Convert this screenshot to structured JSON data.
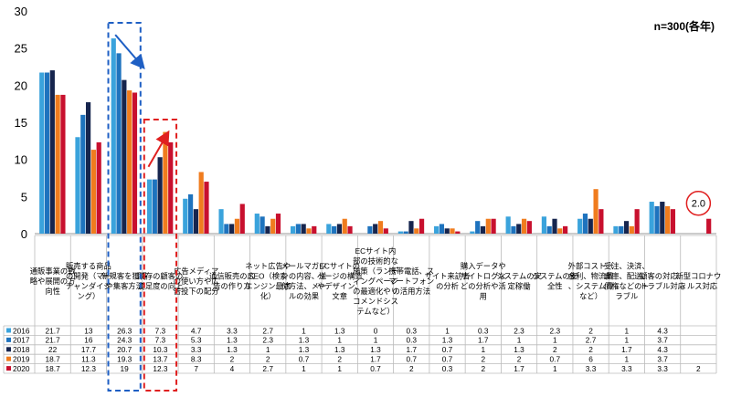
{
  "chart_data": {
    "type": "bar",
    "note": "n=300(各年)",
    "ylim": [
      0,
      30
    ],
    "yticks": [
      0,
      5,
      10,
      15,
      20,
      25,
      30
    ],
    "categories": [
      "通販事業の戦略や展開の方向性",
      "販売する商品の開発（マーチャンダイジング）",
      "新規客を獲得や集客方法",
      "既存の顧客の満足度の向上",
      "広告メディアの使い方や広告投下の配分",
      "通信販売の広告の作り方",
      "ネット広告やSEO（検索エンジン最適化）",
      "メールマガジンの内容、送付方法、メールの効果",
      "ECサイトのページの構造やデザイン、文章",
      "ECサイト内部の技術的な施策（ランディングページの最適化やリコメンドシステムなど）",
      "携帯電話、スマートフォンの活用方法",
      "サイト来訪者の分析",
      "購入データやサイトログなどの分析や活用",
      "システムの安定稼働",
      "システムの安全性",
      "外部コスト（金利、物流費、システム費など）",
      "受注、決済、倉庫、配送、債権などのトラブル",
      "顧客の対応、トラブル対応",
      "新型コロナウィルス対応"
    ],
    "series": [
      {
        "name": "2016",
        "color": "#3aa3dc",
        "values": [
          21.7,
          13,
          26.3,
          7.3,
          4.7,
          3.3,
          2.7,
          1,
          1.3,
          0,
          0.3,
          1,
          0.3,
          2.3,
          2.3,
          2,
          1,
          4.3,
          null
        ]
      },
      {
        "name": "2017",
        "color": "#1e73be",
        "values": [
          21.7,
          16,
          24.3,
          7.3,
          5.3,
          1.3,
          2.3,
          1.3,
          1,
          1,
          0.3,
          1.3,
          1.7,
          1,
          1,
          2.7,
          1,
          3.7,
          null
        ]
      },
      {
        "name": "2018",
        "color": "#16254e",
        "values": [
          22.0,
          17.7,
          20.7,
          10.3,
          3.3,
          1.3,
          1.0,
          1.3,
          1.3,
          1.3,
          1.7,
          0.7,
          1.0,
          1.3,
          2.0,
          2.0,
          1.7,
          4.3,
          null
        ]
      },
      {
        "name": "2019",
        "color": "#f07c1e",
        "values": [
          18.7,
          11.3,
          19.3,
          13.7,
          8.3,
          2.0,
          2.0,
          0.7,
          2.0,
          1.7,
          0.7,
          0.7,
          2.0,
          2.0,
          0.7,
          6.0,
          1.0,
          3.7,
          null
        ]
      },
      {
        "name": "2020",
        "color": "#c8102e",
        "values": [
          18.7,
          12.3,
          19.0,
          12.3,
          7.0,
          4.0,
          2.7,
          1.0,
          1.0,
          0.7,
          2.0,
          0.3,
          2.0,
          1.7,
          1.0,
          3.3,
          3.3,
          3.3,
          2.0
        ]
      }
    ],
    "highlight_label": "2.0",
    "grid": false,
    "legend": "table-left"
  }
}
